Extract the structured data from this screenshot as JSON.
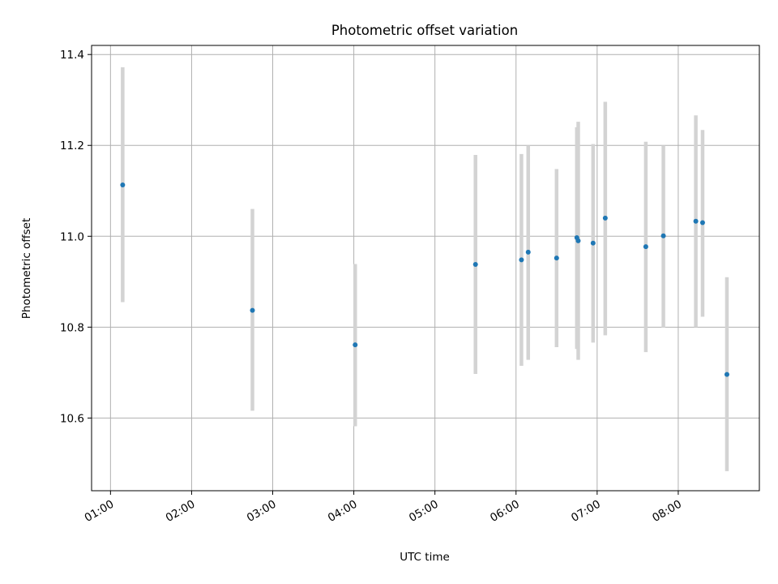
{
  "chart_data": {
    "type": "scatter",
    "title": "Photometric offset variation",
    "xlabel": "UTC time",
    "ylabel": "Photometric offset",
    "x_axis": "time",
    "xlim": [
      "00:46",
      "09:00"
    ],
    "ylim": [
      10.44,
      11.42
    ],
    "x_ticks": [
      "01:00",
      "02:00",
      "03:00",
      "04:00",
      "05:00",
      "06:00",
      "07:00",
      "08:00"
    ],
    "y_ticks": [
      10.6,
      10.8,
      11.0,
      11.2,
      11.4
    ],
    "y_tick_labels": [
      "10.6",
      "10.8",
      "11.0",
      "11.2",
      "11.4"
    ],
    "grid": true,
    "points": [
      {
        "x": "01:09",
        "y": 11.113,
        "err_low": 10.855,
        "err_high": 11.372
      },
      {
        "x": "02:45",
        "y": 10.837,
        "err_low": 10.616,
        "err_high": 11.06
      },
      {
        "x": "04:01",
        "y": 10.761,
        "err_low": 10.582,
        "err_high": 10.939
      },
      {
        "x": "05:30",
        "y": 10.938,
        "err_low": 10.697,
        "err_high": 11.179
      },
      {
        "x": "06:04",
        "y": 10.948,
        "err_low": 10.715,
        "err_high": 11.181
      },
      {
        "x": "06:09",
        "y": 10.965,
        "err_low": 10.728,
        "err_high": 11.2
      },
      {
        "x": "06:30",
        "y": 10.952,
        "err_low": 10.756,
        "err_high": 11.148
      },
      {
        "x": "06:45",
        "y": 10.997,
        "err_low": 10.752,
        "err_high": 11.24
      },
      {
        "x": "06:46",
        "y": 10.99,
        "err_low": 10.728,
        "err_high": 11.252
      },
      {
        "x": "06:57",
        "y": 10.985,
        "err_low": 10.766,
        "err_high": 11.203
      },
      {
        "x": "07:06",
        "y": 11.04,
        "err_low": 10.782,
        "err_high": 11.296
      },
      {
        "x": "07:36",
        "y": 10.977,
        "err_low": 10.745,
        "err_high": 11.208
      },
      {
        "x": "07:49",
        "y": 11.001,
        "err_low": 10.799,
        "err_high": 11.2
      },
      {
        "x": "08:13",
        "y": 11.033,
        "err_low": 10.8,
        "err_high": 11.266
      },
      {
        "x": "08:18",
        "y": 11.03,
        "err_low": 10.823,
        "err_high": 11.234
      },
      {
        "x": "08:36",
        "y": 10.696,
        "err_low": 10.483,
        "err_high": 10.91
      }
    ],
    "marker_color": "#1f77b4",
    "errorbar_color": "#d3d3d3",
    "grid_color": "#b0b0b0"
  }
}
